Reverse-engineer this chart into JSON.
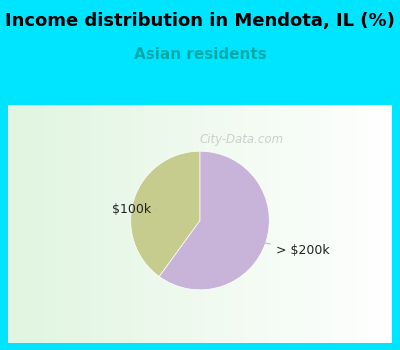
{
  "title": "Income distribution in Mendota, IL (%)",
  "subtitle": "Asian residents",
  "title_color": "#000000",
  "subtitle_color": "#00aaaa",
  "background_color_cyan": "#00e5ff",
  "chart_bg_color": "#eaf5ee",
  "slices": [
    {
      "label": "$100k",
      "value": 40,
      "color": "#c5cc8e"
    },
    {
      "label": "> $200k",
      "value": 60,
      "color": "#c8b4d8"
    }
  ],
  "startangle": 90,
  "watermark": "City-Data.com",
  "label_color": "#222222",
  "line_color": "#bbbbcc",
  "title_fontsize": 13,
  "subtitle_fontsize": 11,
  "label_fontsize": 9
}
